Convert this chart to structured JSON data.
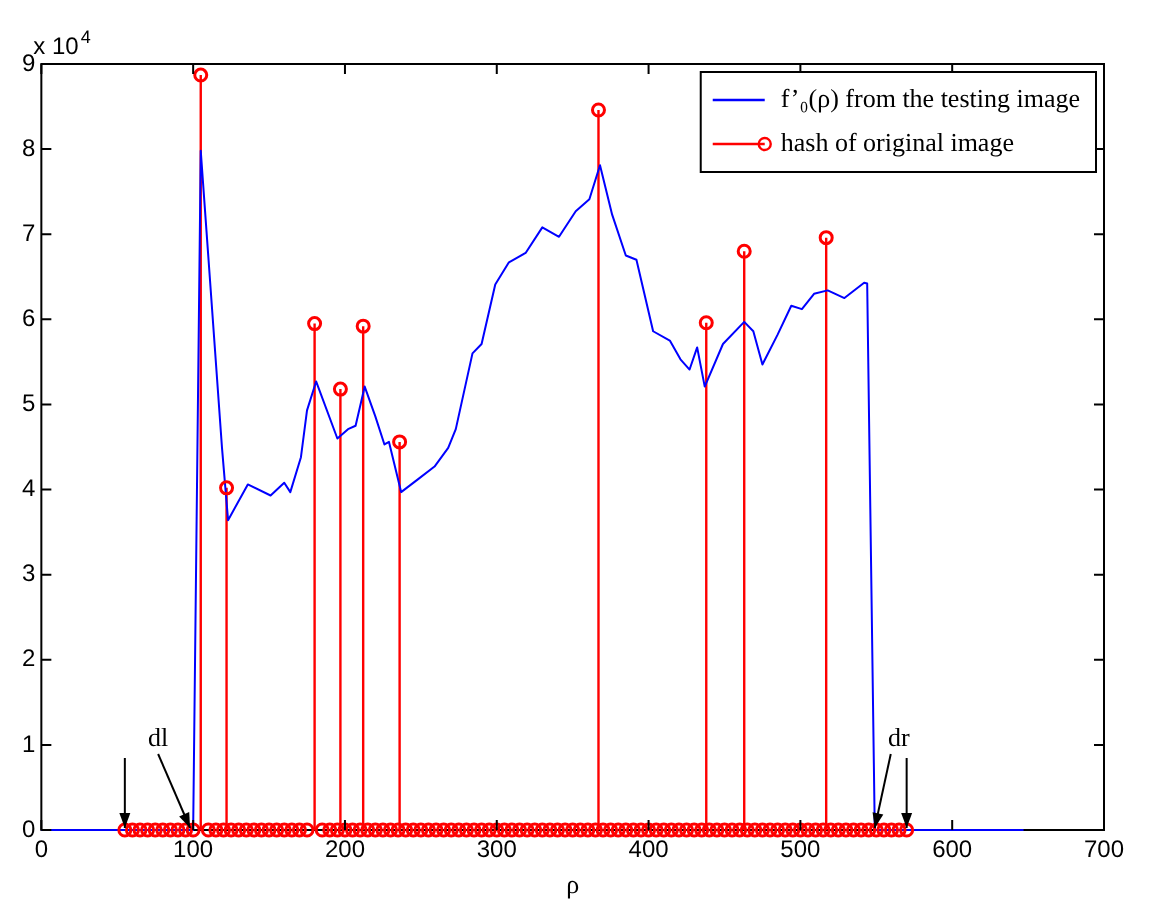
{
  "chart_data": {
    "type": "line",
    "xlabel": "ρ",
    "xlim": [
      0,
      700
    ],
    "xticks": [
      0,
      100,
      200,
      300,
      400,
      500,
      600,
      700
    ],
    "ylim": [
      0,
      9
    ],
    "yticks": [
      0,
      1,
      2,
      3,
      4,
      5,
      6,
      7,
      8,
      9
    ],
    "grid": false,
    "legend": "top right",
    "annotations": [
      "x 10$^{4}$",
      {
        "text": "dl",
        "x": 98,
        "y": 0
      },
      {
        "text": "dr",
        "x": 549,
        "y": 0
      }
    ],
    "series": [
      {
        "name": "f’₀(ρ) from the testing image",
        "type": "line",
        "color": "#0000ff",
        "marker": "none",
        "line_style": "solid",
        "x": [
          0,
          98,
          100,
          105,
          119,
          123,
          136,
          151,
          160,
          164,
          171,
          175,
          181,
          195,
          202,
          207,
          213,
          220,
          226,
          229,
          237,
          248,
          259,
          268,
          273,
          284,
          290,
          299,
          308,
          319,
          330,
          341,
          352,
          361,
          368,
          376,
          385,
          392,
          403,
          414,
          421,
          427,
          432,
          437,
          449,
          463,
          469,
          475,
          485,
          494,
          501,
          509,
          518,
          529,
          542,
          544,
          549,
          647
        ],
        "values": [
          0,
          0,
          0,
          7.98,
          4.49,
          3.64,
          4.06,
          3.93,
          4.08,
          3.97,
          4.38,
          4.93,
          5.27,
          4.6,
          4.71,
          4.75,
          5.21,
          4.86,
          4.53,
          4.56,
          3.97,
          4.12,
          4.27,
          4.49,
          4.71,
          5.6,
          5.71,
          6.41,
          6.67,
          6.78,
          7.08,
          6.97,
          7.27,
          7.41,
          7.81,
          7.23,
          6.75,
          6.7,
          5.86,
          5.75,
          5.53,
          5.41,
          5.67,
          5.21,
          5.71,
          5.97,
          5.86,
          5.47,
          5.82,
          6.16,
          6.12,
          6.3,
          6.34,
          6.25,
          6.43,
          6.42,
          0,
          0
        ]
      },
      {
        "name": "hash of original image",
        "type": "lollipop",
        "color": "#ff0000",
        "marker": "circle",
        "x": [
          55,
          60,
          65,
          70,
          75,
          80,
          85,
          90,
          95,
          100,
          105,
          110,
          115,
          120,
          122,
          125,
          130,
          135,
          140,
          145,
          150,
          155,
          160,
          165,
          170,
          175,
          180,
          185,
          190,
          195,
          197,
          200,
          205,
          210,
          212,
          215,
          220,
          225,
          230,
          235,
          236,
          240,
          245,
          250,
          255,
          260,
          265,
          270,
          275,
          280,
          285,
          290,
          295,
          300,
          305,
          310,
          315,
          320,
          325,
          330,
          335,
          340,
          345,
          350,
          355,
          360,
          365,
          367,
          370,
          375,
          380,
          385,
          390,
          395,
          400,
          405,
          410,
          415,
          420,
          425,
          430,
          435,
          438,
          440,
          445,
          450,
          455,
          460,
          463,
          465,
          470,
          475,
          480,
          485,
          490,
          495,
          500,
          505,
          510,
          515,
          517,
          520,
          525,
          530,
          535,
          540,
          545,
          550,
          555,
          560,
          565,
          570
        ],
        "values": [
          0,
          0,
          0,
          0,
          0,
          0,
          0,
          0,
          0,
          0,
          8.87,
          0,
          0,
          0,
          4.02,
          0,
          0,
          0,
          0,
          0,
          0,
          0,
          0,
          0,
          0,
          0,
          5.95,
          0,
          0,
          0,
          5.18,
          0,
          0,
          0,
          5.92,
          0,
          0,
          0,
          0,
          0,
          4.56,
          0,
          0,
          0,
          0,
          0,
          0,
          0,
          0,
          0,
          0,
          0,
          0,
          0,
          0,
          0,
          0,
          0,
          0,
          0,
          0,
          0,
          0,
          0,
          0,
          0,
          0,
          8.46,
          0,
          0,
          0,
          0,
          0,
          0,
          0,
          0,
          0,
          0,
          0,
          0,
          0,
          0,
          5.96,
          0,
          0,
          0,
          0,
          0,
          6.8,
          0,
          0,
          0,
          0,
          0,
          0,
          0,
          0,
          0,
          0,
          0,
          6.96,
          0,
          0,
          0,
          0,
          0,
          0,
          0,
          0,
          0,
          0,
          0
        ]
      }
    ]
  }
}
